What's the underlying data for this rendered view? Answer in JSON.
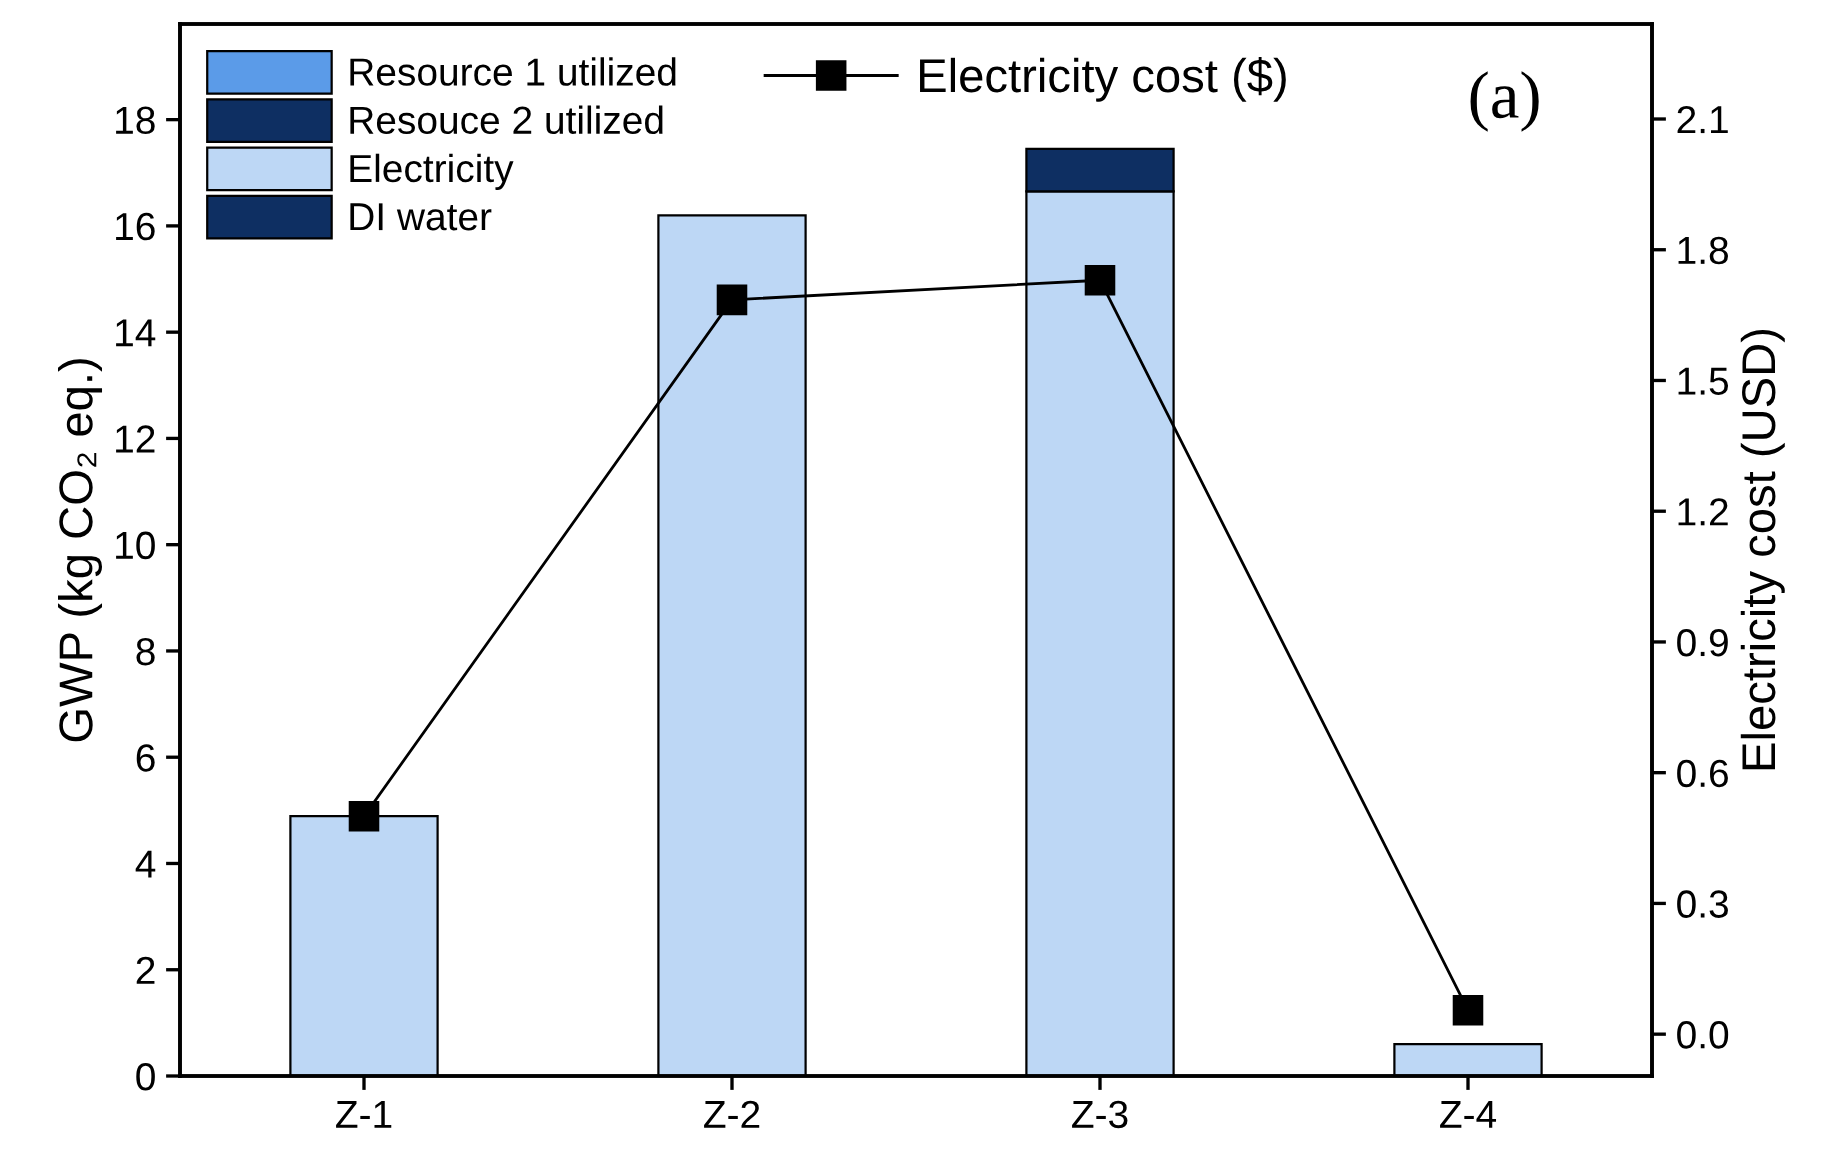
{
  "chart_data": {
    "type": "bar",
    "stacked": true,
    "categories": [
      "Z-1",
      "Z-2",
      "Z-3",
      "Z-4"
    ],
    "ylabel": "GWP (kg CO₂ eq.)",
    "y2label": "Electricity cost (USD)",
    "ylim": [
      0,
      19.8
    ],
    "yticks": [
      0,
      2,
      4,
      6,
      8,
      10,
      12,
      14,
      16,
      18
    ],
    "y2lim": [
      -0.096,
      2.318
    ],
    "y2ticks": [
      {
        "value": 0,
        "label": "0.0"
      },
      {
        "value": 0.3,
        "label": "0.3"
      },
      {
        "value": 0.6,
        "label": "0.6"
      },
      {
        "value": 0.9,
        "label": "0.9"
      },
      {
        "value": 1.2,
        "label": "1.2"
      },
      {
        "value": 1.5,
        "label": "1.5"
      },
      {
        "value": 1.8,
        "label": "1.8"
      },
      {
        "value": 2.1,
        "label": "2.1"
      }
    ],
    "series": [
      {
        "name": "Resource 1 utilized",
        "color": "#5b9be8",
        "values": [
          null,
          null,
          null,
          null
        ]
      },
      {
        "name": "Resouce 2 utilized",
        "color": "#0e2f62",
        "values": [
          null,
          null,
          null,
          null
        ]
      },
      {
        "name": "Electricity",
        "color": "#bdd7f5",
        "values": [
          4.89,
          16.2,
          16.65,
          0.6
        ]
      },
      {
        "name": "DI water",
        "color": "#0e2f62",
        "values": [
          null,
          null,
          0.8,
          null
        ]
      },
      {
        "name": "Electricity cost ($)",
        "type": "line",
        "axis": "y2",
        "color": "#000000",
        "marker": "square",
        "values": [
          0.5,
          1.685,
          1.73,
          0.055
        ]
      }
    ],
    "legend": "top left",
    "grid": false,
    "annotations": [
      "(a)"
    ]
  }
}
